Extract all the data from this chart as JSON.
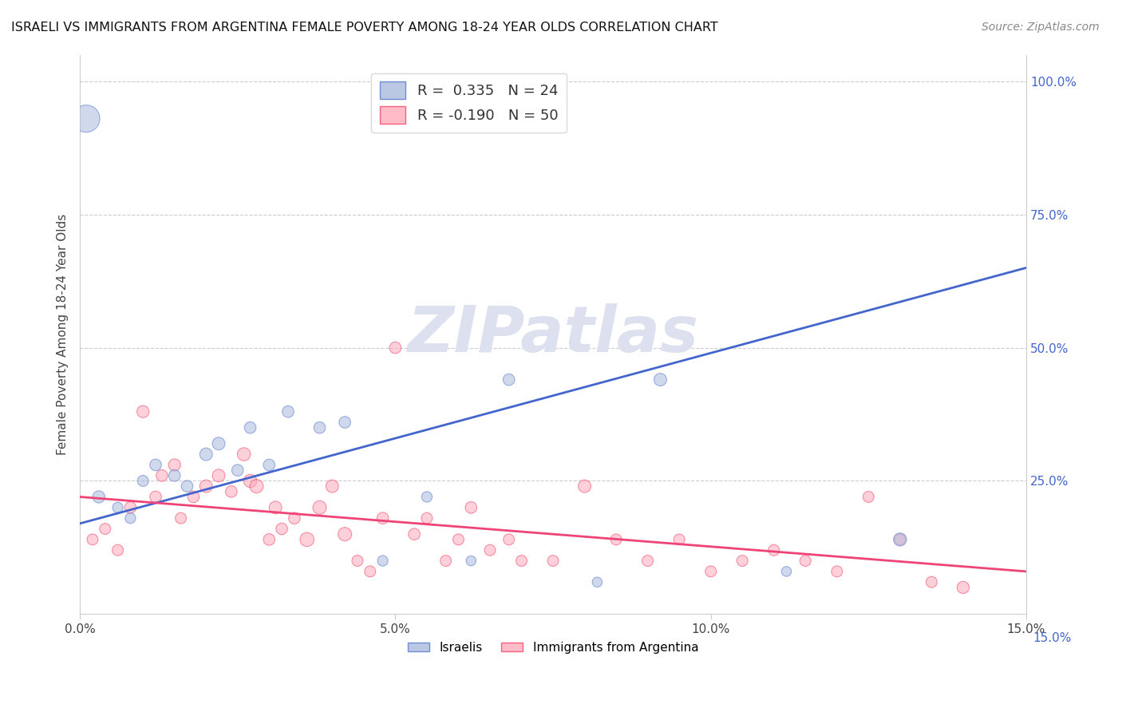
{
  "title": "ISRAELI VS IMMIGRANTS FROM ARGENTINA FEMALE POVERTY AMONG 18-24 YEAR OLDS CORRELATION CHART",
  "source": "Source: ZipAtlas.com",
  "ylabel": "Female Poverty Among 18-24 Year Olds",
  "xlim": [
    0.0,
    0.15
  ],
  "ylim": [
    0.0,
    1.05
  ],
  "right_yticks": [
    1.0,
    0.75,
    0.5,
    0.25
  ],
  "right_yticklabels": [
    "100.0%",
    "75.0%",
    "50.0%",
    "25.0%"
  ],
  "bottom_right_label": "15.0%",
  "xticks": [
    0.0,
    0.05,
    0.1,
    0.15
  ],
  "xticklabels": [
    "0.0%",
    "5.0%",
    "10.0%",
    "15.0%"
  ],
  "blue_fill": "#aabbdd",
  "blue_edge": "#5577cc",
  "pink_fill": "#ffaabb",
  "pink_edge": "#ee4466",
  "blue_line_color": "#4466cc",
  "pink_line_color": "#ee4477",
  "grid_color": "#cccccc",
  "watermark_color": "#dde0ee",
  "legend_R_blue": "R =  0.335",
  "legend_N_blue": "N = 24",
  "legend_R_pink": "R = -0.190",
  "legend_N_pink": "N = 50",
  "blue_trend_x0": 0.0,
  "blue_trend_y0": 0.17,
  "blue_trend_x1": 0.15,
  "blue_trend_y1": 0.65,
  "pink_trend_x0": 0.0,
  "pink_trend_y0": 0.22,
  "pink_trend_x1": 0.15,
  "pink_trend_y1": 0.08,
  "israelis_x": [
    0.001,
    0.003,
    0.006,
    0.008,
    0.01,
    0.012,
    0.015,
    0.017,
    0.02,
    0.022,
    0.025,
    0.027,
    0.03,
    0.033,
    0.038,
    0.042,
    0.048,
    0.055,
    0.062,
    0.068,
    0.082,
    0.092,
    0.112,
    0.13
  ],
  "israelis_y": [
    0.93,
    0.22,
    0.2,
    0.18,
    0.25,
    0.28,
    0.26,
    0.24,
    0.3,
    0.32,
    0.27,
    0.35,
    0.28,
    0.38,
    0.35,
    0.36,
    0.1,
    0.22,
    0.1,
    0.44,
    0.06,
    0.44,
    0.08,
    0.14
  ],
  "israelis_size": [
    600,
    120,
    90,
    90,
    100,
    110,
    110,
    110,
    130,
    130,
    110,
    110,
    110,
    110,
    110,
    110,
    90,
    90,
    80,
    110,
    80,
    130,
    80,
    140
  ],
  "argentina_x": [
    0.002,
    0.004,
    0.006,
    0.008,
    0.01,
    0.012,
    0.013,
    0.015,
    0.016,
    0.018,
    0.02,
    0.022,
    0.024,
    0.026,
    0.027,
    0.028,
    0.03,
    0.031,
    0.032,
    0.034,
    0.036,
    0.038,
    0.04,
    0.042,
    0.044,
    0.046,
    0.048,
    0.05,
    0.053,
    0.055,
    0.058,
    0.06,
    0.062,
    0.065,
    0.068,
    0.07,
    0.075,
    0.08,
    0.085,
    0.09,
    0.095,
    0.1,
    0.105,
    0.11,
    0.115,
    0.12,
    0.125,
    0.13,
    0.135,
    0.14
  ],
  "argentina_y": [
    0.14,
    0.16,
    0.12,
    0.2,
    0.38,
    0.22,
    0.26,
    0.28,
    0.18,
    0.22,
    0.24,
    0.26,
    0.23,
    0.3,
    0.25,
    0.24,
    0.14,
    0.2,
    0.16,
    0.18,
    0.14,
    0.2,
    0.24,
    0.15,
    0.1,
    0.08,
    0.18,
    0.5,
    0.15,
    0.18,
    0.1,
    0.14,
    0.2,
    0.12,
    0.14,
    0.1,
    0.1,
    0.24,
    0.14,
    0.1,
    0.14,
    0.08,
    0.1,
    0.12,
    0.1,
    0.08,
    0.22,
    0.14,
    0.06,
    0.05
  ],
  "argentina_size": [
    100,
    100,
    100,
    110,
    120,
    110,
    110,
    120,
    100,
    110,
    130,
    130,
    110,
    140,
    140,
    150,
    110,
    130,
    110,
    110,
    160,
    150,
    130,
    150,
    100,
    100,
    110,
    110,
    110,
    100,
    100,
    100,
    110,
    100,
    100,
    100,
    100,
    130,
    100,
    100,
    100,
    100,
    100,
    100,
    100,
    100,
    100,
    100,
    100,
    120
  ]
}
